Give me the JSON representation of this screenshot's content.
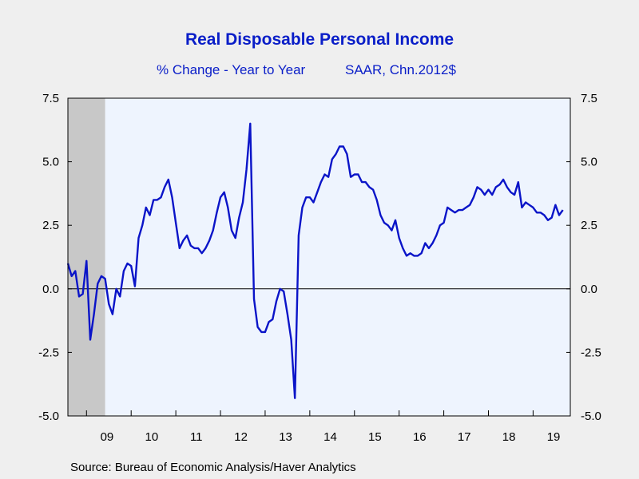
{
  "chart_data": {
    "type": "line",
    "title": "Real Disposable Personal Income",
    "subtitle_left": "% Change - Year to Year",
    "subtitle_right": "SAAR, Chn.2012$",
    "source": "Source:  Bureau of Economic Analysis/Haver Analytics",
    "ylim": [
      -5.0,
      7.5
    ],
    "yticks": [
      "7.5",
      "5.0",
      "2.5",
      "0.0",
      "-2.5",
      "-5.0"
    ],
    "yticks_right": [
      "7.5",
      "5.0",
      "2.5",
      "0.0",
      "-2.5",
      "-5.0"
    ],
    "ytick_values": [
      7.5,
      5.0,
      2.5,
      0.0,
      -2.5,
      -5.0
    ],
    "xlim": [
      "2008-08",
      "2019-11"
    ],
    "xtick_labels": [
      "09",
      "10",
      "11",
      "12",
      "13",
      "14",
      "15",
      "16",
      "17",
      "18",
      "19"
    ],
    "recession": {
      "start": "2008-08",
      "end": "2009-06",
      "color": "#c8c8c8"
    },
    "line_color": "#0a14c8",
    "plot_background": "#eef4fe",
    "zero_line": true,
    "series": [
      {
        "start": "2008-08",
        "frequency": "monthly",
        "values": [
          1.0,
          0.5,
          0.7,
          -0.3,
          -0.2,
          1.1,
          -2.0,
          -1.0,
          0.2,
          0.5,
          0.4,
          -0.6,
          -1.0,
          0.0,
          -0.3,
          0.7,
          1.0,
          0.9,
          0.1,
          2.0,
          2.5,
          3.2,
          2.9,
          3.5,
          3.5,
          3.6,
          4.0,
          4.3,
          3.6,
          2.6,
          1.6,
          1.9,
          2.1,
          1.7,
          1.6,
          1.6,
          1.4,
          1.6,
          1.9,
          2.3,
          3.0,
          3.6,
          3.8,
          3.2,
          2.3,
          2.0,
          2.8,
          3.4,
          4.7,
          6.5,
          -0.4,
          -1.5,
          -1.7,
          -1.7,
          -1.3,
          -1.2,
          -0.5,
          0.0,
          -0.1,
          -1.0,
          -2.0,
          -4.3,
          2.1,
          3.2,
          3.6,
          3.6,
          3.4,
          3.8,
          4.2,
          4.5,
          4.4,
          5.1,
          5.3,
          5.6,
          5.6,
          5.3,
          4.4,
          4.5,
          4.5,
          4.2,
          4.2,
          4.0,
          3.9,
          3.5,
          2.9,
          2.6,
          2.5,
          2.3,
          2.7,
          2.0,
          1.6,
          1.3,
          1.4,
          1.3,
          1.3,
          1.4,
          1.8,
          1.6,
          1.8,
          2.1,
          2.5,
          2.6,
          3.2,
          3.1,
          3.0,
          3.1,
          3.1,
          3.2,
          3.3,
          3.6,
          4.0,
          3.9,
          3.7,
          3.9,
          3.7,
          4.0,
          4.1,
          4.3,
          4.0,
          3.8,
          3.7,
          4.2,
          3.2,
          3.4,
          3.3,
          3.2,
          3.0,
          3.0,
          2.9,
          2.7,
          2.8,
          3.3,
          2.9,
          3.1
        ]
      }
    ]
  }
}
